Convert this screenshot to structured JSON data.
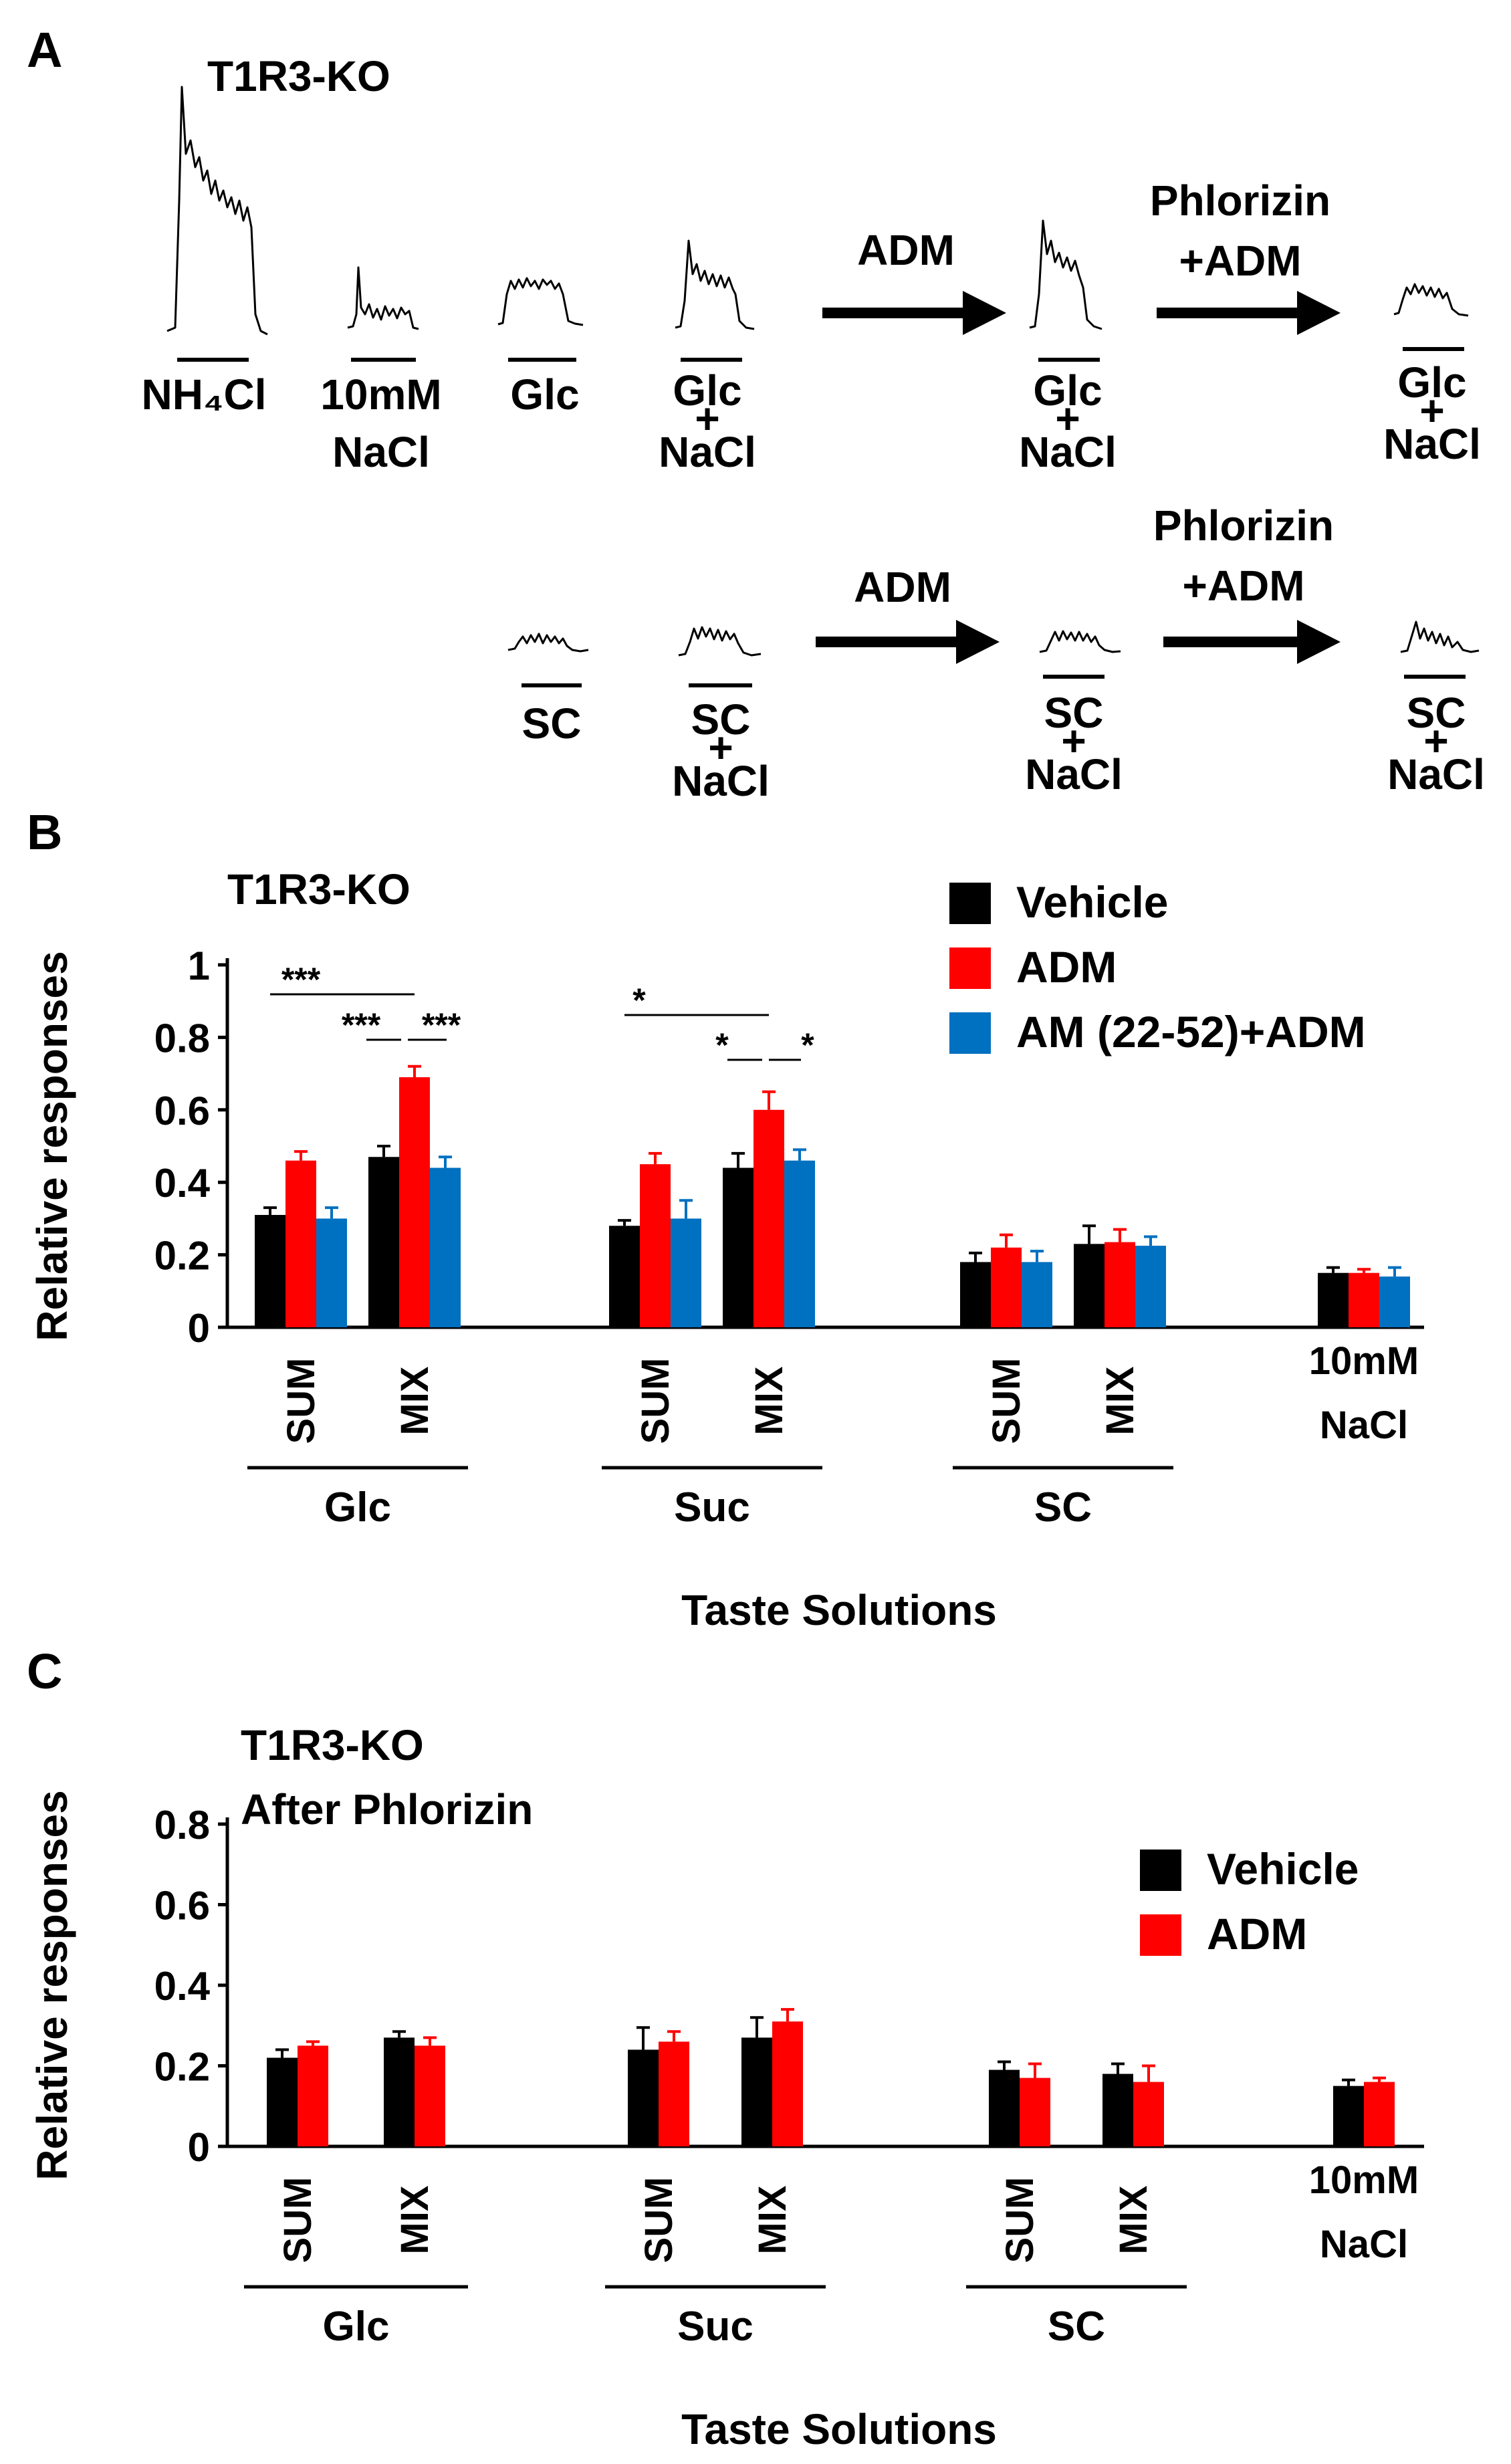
{
  "panel_a": {
    "letter": "A",
    "title": "T1R3-KO",
    "row1": {
      "traces": [
        {
          "label_lines": [
            "NH₄Cl"
          ]
        },
        {
          "label_lines": [
            "10mM",
            "NaCl"
          ]
        },
        {
          "label_lines": [
            "Glc"
          ]
        },
        {
          "label_lines": [
            "Glc",
            "+",
            "NaCl"
          ]
        },
        {
          "label_lines": [
            "Glc",
            "+",
            "NaCl"
          ]
        },
        {
          "label_lines": [
            "Glc",
            "+",
            "NaCl"
          ]
        }
      ],
      "arrow1_label": [
        "ADM"
      ],
      "arrow2_label": [
        "Phlorizin",
        "+ADM"
      ]
    },
    "row2": {
      "traces": [
        {
          "label_lines": [
            "SC"
          ]
        },
        {
          "label_lines": [
            "SC",
            "+",
            "NaCl"
          ]
        },
        {
          "label_lines": [
            "SC",
            "+",
            "NaCl"
          ]
        },
        {
          "label_lines": [
            "SC",
            "+",
            "NaCl"
          ]
        }
      ],
      "arrow1_label": [
        "ADM"
      ],
      "arrow2_label": [
        "Phlorizin",
        "+ADM"
      ]
    }
  },
  "chart_data": [
    {
      "panel": "B",
      "type": "bar",
      "title": "T1R3-KO",
      "ylabel": "Relative responses",
      "xlabel": "Taste Solutions",
      "ylim": [
        0,
        1
      ],
      "yticks": [
        "0",
        "0.2",
        "0.4",
        "0.6",
        "0.8",
        "1"
      ],
      "yticks_values": [
        0,
        0.2,
        0.4,
        0.6,
        0.8,
        1
      ],
      "categories": [
        "SUM",
        "MIX",
        "SUM",
        "MIX",
        "SUM",
        "MIX",
        "10mM NaCl"
      ],
      "category_label_lines": [
        [
          "SUM"
        ],
        [
          "MIX"
        ],
        [
          "SUM"
        ],
        [
          "MIX"
        ],
        [
          "SUM"
        ],
        [
          "MIX"
        ],
        [
          "10mM",
          "NaCl"
        ]
      ],
      "groups": [
        {
          "label": "Glc",
          "category_indices": [
            0,
            1
          ]
        },
        {
          "label": "Suc",
          "category_indices": [
            2,
            3
          ]
        },
        {
          "label": "SC",
          "category_indices": [
            4,
            5
          ]
        }
      ],
      "series": [
        {
          "name": "Vehicle",
          "color": "#000000",
          "values": [
            0.31,
            0.47,
            0.28,
            0.44,
            0.18,
            0.23,
            0.15
          ],
          "errors": [
            0.02,
            0.03,
            0.015,
            0.04,
            0.025,
            0.05,
            0.015
          ]
        },
        {
          "name": "ADM",
          "color": "#ff0000",
          "values": [
            0.46,
            0.69,
            0.45,
            0.6,
            0.22,
            0.235,
            0.15
          ],
          "errors": [
            0.025,
            0.03,
            0.03,
            0.05,
            0.035,
            0.035,
            0.01
          ]
        },
        {
          "name": "AM (22-52)+ADM",
          "color": "#0070c0",
          "values": [
            0.3,
            0.44,
            0.3,
            0.46,
            0.18,
            0.225,
            0.14
          ],
          "errors": [
            0.03,
            0.03,
            0.05,
            0.03,
            0.03,
            0.025,
            0.025
          ]
        }
      ],
      "legend": {
        "position": "top-right"
      },
      "annotations": [
        "***",
        "***",
        "***",
        "*",
        "*",
        "*"
      ]
    },
    {
      "panel": "C",
      "type": "bar",
      "title": [
        "T1R3-KO",
        "After Phlorizin"
      ],
      "ylabel": "Relative responses",
      "xlabel": "Taste Solutions",
      "ylim": [
        0,
        0.8
      ],
      "yticks": [
        "0",
        "0.2",
        "0.4",
        "0.6",
        "0.8"
      ],
      "yticks_values": [
        0,
        0.2,
        0.4,
        0.6,
        0.8
      ],
      "categories": [
        "SUM",
        "MIX",
        "SUM",
        "MIX",
        "SUM",
        "MIX",
        "10mM NaCl"
      ],
      "category_label_lines": [
        [
          "SUM"
        ],
        [
          "MIX"
        ],
        [
          "SUM"
        ],
        [
          "MIX"
        ],
        [
          "SUM"
        ],
        [
          "MIX"
        ],
        [
          "10mM",
          "NaCl"
        ]
      ],
      "groups": [
        {
          "label": "Glc",
          "category_indices": [
            0,
            1
          ]
        },
        {
          "label": "Suc",
          "category_indices": [
            2,
            3
          ]
        },
        {
          "label": "SC",
          "category_indices": [
            4,
            5
          ]
        }
      ],
      "series": [
        {
          "name": "Vehicle",
          "color": "#000000",
          "values": [
            0.22,
            0.27,
            0.24,
            0.27,
            0.19,
            0.18,
            0.15
          ],
          "errors": [
            0.02,
            0.015,
            0.055,
            0.05,
            0.02,
            0.025,
            0.015
          ]
        },
        {
          "name": "ADM",
          "color": "#ff0000",
          "values": [
            0.25,
            0.25,
            0.26,
            0.31,
            0.17,
            0.16,
            0.16
          ],
          "errors": [
            0.01,
            0.02,
            0.025,
            0.03,
            0.035,
            0.04,
            0.01
          ]
        }
      ],
      "legend": {
        "position": "right"
      }
    }
  ]
}
